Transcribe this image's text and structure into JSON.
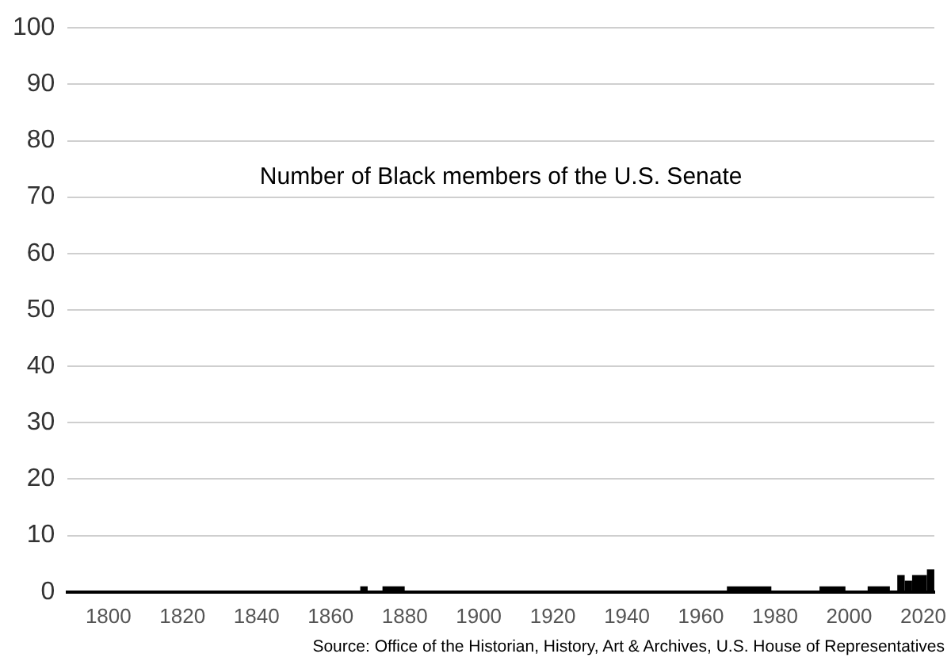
{
  "chart_data": {
    "type": "histogram",
    "title": "Number of Black members of the U.S. Senate",
    "bins": [
      1868,
      1870,
      1874,
      1880,
      1967,
      1979,
      1992,
      1999,
      2005,
      2011,
      2013,
      2015,
      2017,
      2021,
      2023
    ],
    "values": [
      1,
      0,
      1,
      0,
      1,
      0,
      1,
      0,
      1,
      0,
      3,
      2,
      3,
      4
    ],
    "color": "#000000",
    "xlim": [
      1789,
      2023
    ],
    "xticks": [
      1800,
      1820,
      1840,
      1860,
      1880,
      1900,
      1920,
      1940,
      1960,
      1980,
      2000,
      2020
    ],
    "ylim": [
      0,
      100
    ],
    "yticks": [
      0,
      10,
      20,
      30,
      40,
      50,
      60,
      70,
      80,
      90,
      100
    ],
    "grid": "y",
    "annotations": [
      "Source: Office of the Historian, History, Art & Archives, U.S. House of Representatives"
    ]
  }
}
